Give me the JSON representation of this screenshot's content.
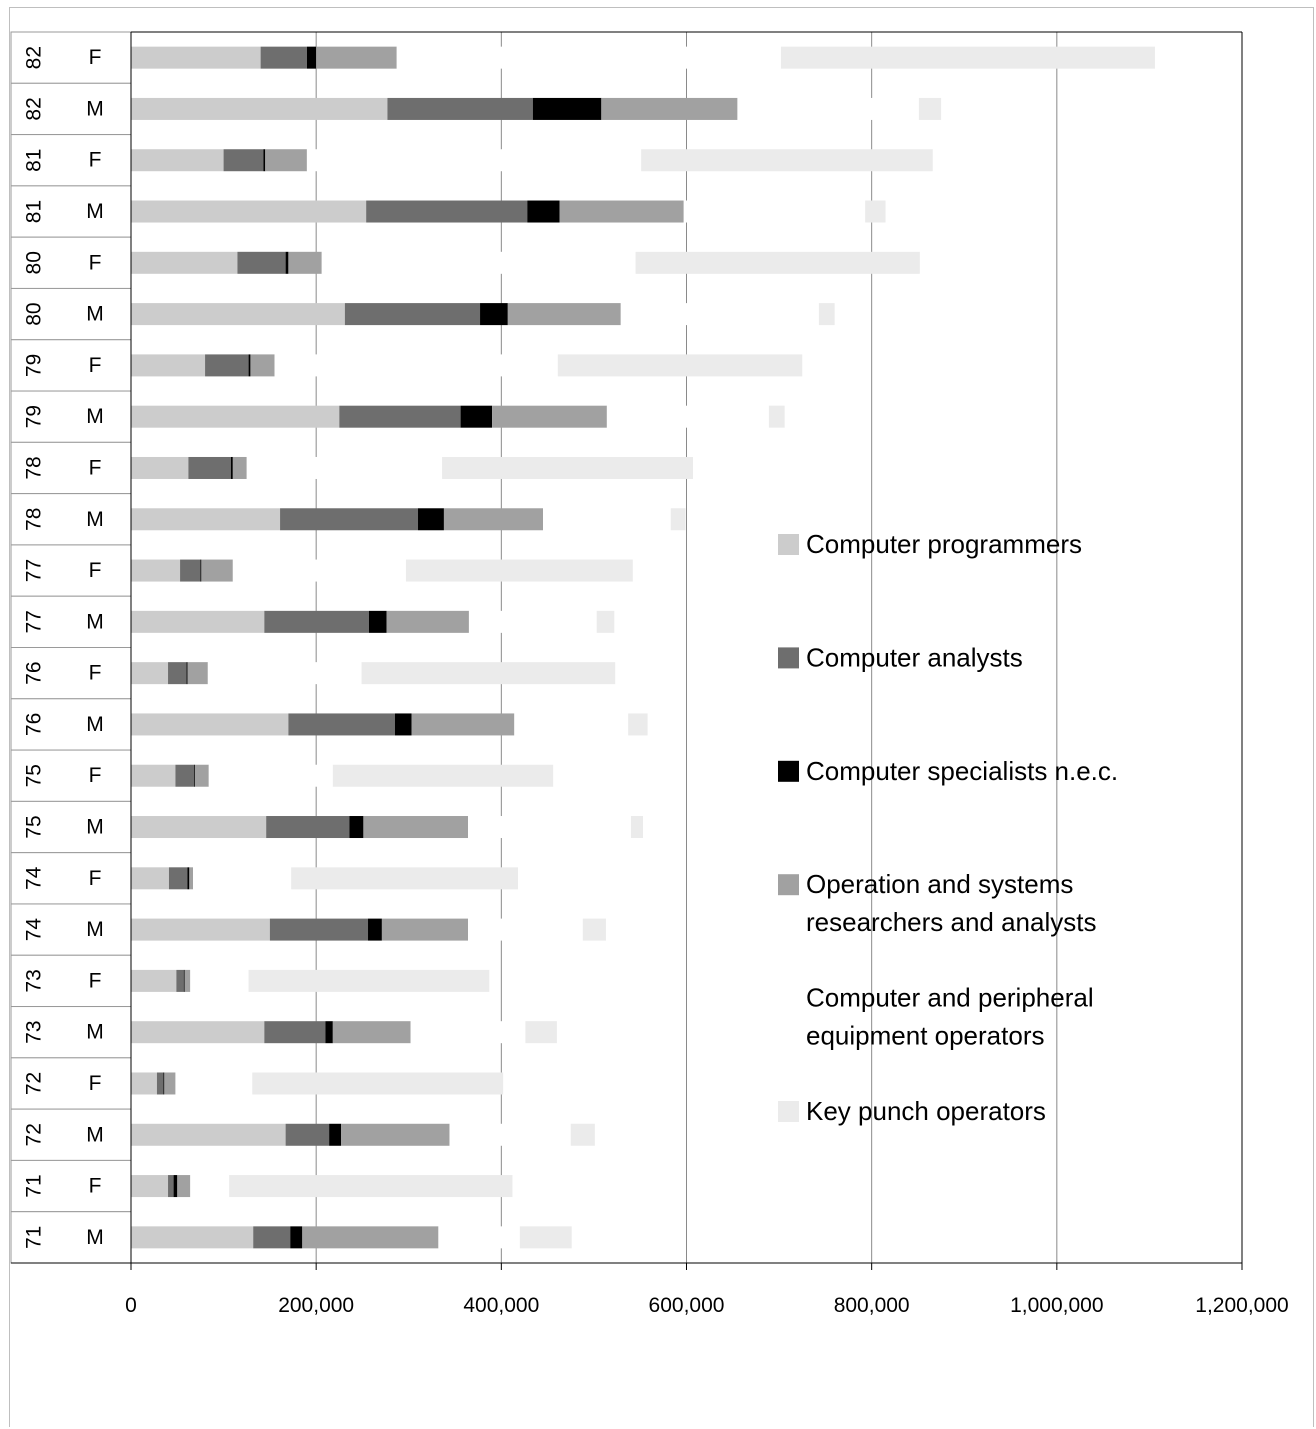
{
  "chart_data": {
    "type": "bar",
    "orientation": "horizontal",
    "stacked": true,
    "categories": [
      {
        "year": "82",
        "sex": "F"
      },
      {
        "year": "82",
        "sex": "M"
      },
      {
        "year": "81",
        "sex": "F"
      },
      {
        "year": "81",
        "sex": "M"
      },
      {
        "year": "80",
        "sex": "F"
      },
      {
        "year": "80",
        "sex": "M"
      },
      {
        "year": "79",
        "sex": "F"
      },
      {
        "year": "79",
        "sex": "M"
      },
      {
        "year": "78",
        "sex": "F"
      },
      {
        "year": "78",
        "sex": "M"
      },
      {
        "year": "77",
        "sex": "F"
      },
      {
        "year": "77",
        "sex": "M"
      },
      {
        "year": "76",
        "sex": "F"
      },
      {
        "year": "76",
        "sex": "M"
      },
      {
        "year": "75",
        "sex": "F"
      },
      {
        "year": "75",
        "sex": "M"
      },
      {
        "year": "74",
        "sex": "F"
      },
      {
        "year": "74",
        "sex": "M"
      },
      {
        "year": "73",
        "sex": "F"
      },
      {
        "year": "73",
        "sex": "M"
      },
      {
        "year": "72",
        "sex": "F"
      },
      {
        "year": "72",
        "sex": "M"
      },
      {
        "year": "71",
        "sex": "F"
      },
      {
        "year": "71",
        "sex": "M"
      }
    ],
    "series": [
      {
        "name": "Computer programmers",
        "color": "#cccccc",
        "values": [
          140000,
          277000,
          100000,
          254000,
          115000,
          231000,
          80000,
          225000,
          62000,
          161000,
          53000,
          144000,
          40000,
          170000,
          48000,
          146000,
          41000,
          150000,
          49000,
          144000,
          28000,
          167000,
          40000,
          132000
        ]
      },
      {
        "name": "Computer analysts",
        "color": "#6e6e6e",
        "values": [
          50000,
          157000,
          43000,
          174000,
          52000,
          146000,
          47000,
          131000,
          46000,
          149000,
          22000,
          113000,
          20000,
          115000,
          20000,
          90000,
          20000,
          106000,
          8000,
          66000,
          7000,
          47000,
          6000,
          40000
        ]
      },
      {
        "name": "Computer specialists n.e.c.",
        "color": "#000000",
        "values": [
          10000,
          74000,
          2000,
          35000,
          3000,
          30000,
          2000,
          34000,
          2000,
          28000,
          1000,
          19000,
          1000,
          18000,
          1000,
          15000,
          2000,
          15000,
          1000,
          8000,
          1000,
          13000,
          4000,
          13000
        ]
      },
      {
        "name": "Operation and systems researchers and analysts",
        "color": "#a1a1a1",
        "values": [
          87000,
          147000,
          45000,
          134000,
          36000,
          122000,
          26000,
          124000,
          15000,
          107000,
          34000,
          89000,
          22000,
          111000,
          15000,
          113000,
          4000,
          93000,
          6000,
          84000,
          12000,
          117000,
          14000,
          147000
        ]
      },
      {
        "name": "Computer and peripheral equipment operators",
        "color": "#ffffff",
        "values": [
          415000,
          196000,
          361000,
          196000,
          339000,
          214000,
          306000,
          175000,
          211000,
          138000,
          187000,
          138000,
          166000,
          123000,
          134000,
          176000,
          106000,
          124000,
          63000,
          124000,
          83000,
          131000,
          42000,
          88000
        ]
      },
      {
        "name": "Key punch operators",
        "color": "#ebebeb",
        "values": [
          404000,
          24000,
          315000,
          22000,
          307000,
          17000,
          264000,
          17000,
          271000,
          16000,
          245000,
          19000,
          274000,
          21000,
          238000,
          13000,
          245000,
          25000,
          260000,
          34000,
          271000,
          26000,
          306000,
          56000
        ]
      }
    ],
    "x_ticks": [
      "0",
      "200,000",
      "400,000",
      "600,000",
      "800,000",
      "1,000,000",
      "1,200,000"
    ],
    "xlim": [
      0,
      1200000
    ],
    "grid": "vertical major gridlines",
    "legend_position": "right, inside plot"
  }
}
